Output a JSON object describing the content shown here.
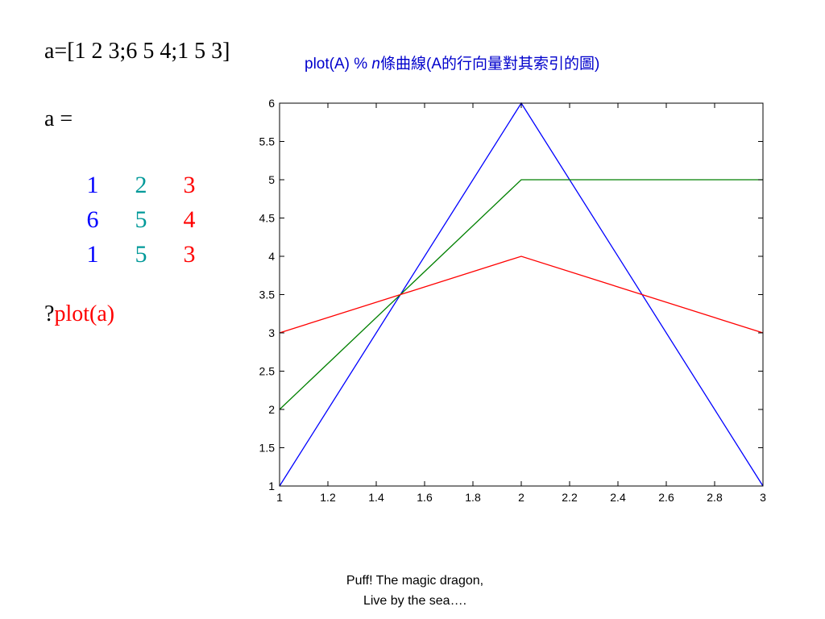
{
  "code_line": "a=[1 2 3;6 5 4;1 5 3]",
  "a_equals": "a =",
  "matrix": {
    "rows": [
      [
        "1",
        "2",
        "3"
      ],
      [
        "6",
        "5",
        "4"
      ],
      [
        "1",
        "5",
        "3"
      ]
    ],
    "column_colors": [
      "#0000ff",
      "#009999",
      "#ff0000"
    ]
  },
  "command": {
    "prefix": "?",
    "text": "plot(a)"
  },
  "caption": {
    "before": "plot(A) % ",
    "italic": "n",
    "after": "條曲線(A的行向量對其索引的圖)"
  },
  "chart_data": {
    "type": "line",
    "x": [
      1,
      2,
      3
    ],
    "series": [
      {
        "values": [
          1,
          6,
          1
        ],
        "color": "#0000ff"
      },
      {
        "values": [
          2,
          5,
          5
        ],
        "color": "#008000"
      },
      {
        "values": [
          3,
          4,
          3
        ],
        "color": "#ff0000"
      }
    ],
    "xlim": [
      1,
      3
    ],
    "ylim": [
      1,
      6
    ],
    "xticks": [
      1,
      1.2,
      1.4,
      1.6,
      1.8,
      2,
      2.2,
      2.4,
      2.6,
      2.8,
      3
    ],
    "xtick_labels": [
      "1",
      "1.2",
      "1.4",
      "1.6",
      "1.8",
      "2",
      "2.2",
      "2.4",
      "2.6",
      "2.8",
      "3"
    ],
    "yticks": [
      1,
      1.5,
      2,
      2.5,
      3,
      3.5,
      4,
      4.5,
      5,
      5.5,
      6
    ],
    "ytick_labels": [
      "1",
      "1.5",
      "2",
      "2.5",
      "3",
      "3.5",
      "4",
      "4.5",
      "5",
      "5.5",
      "6"
    ],
    "grid": false
  },
  "footer": {
    "line1": "Puff! The magic dragon,",
    "line2": "Live by the sea…."
  }
}
